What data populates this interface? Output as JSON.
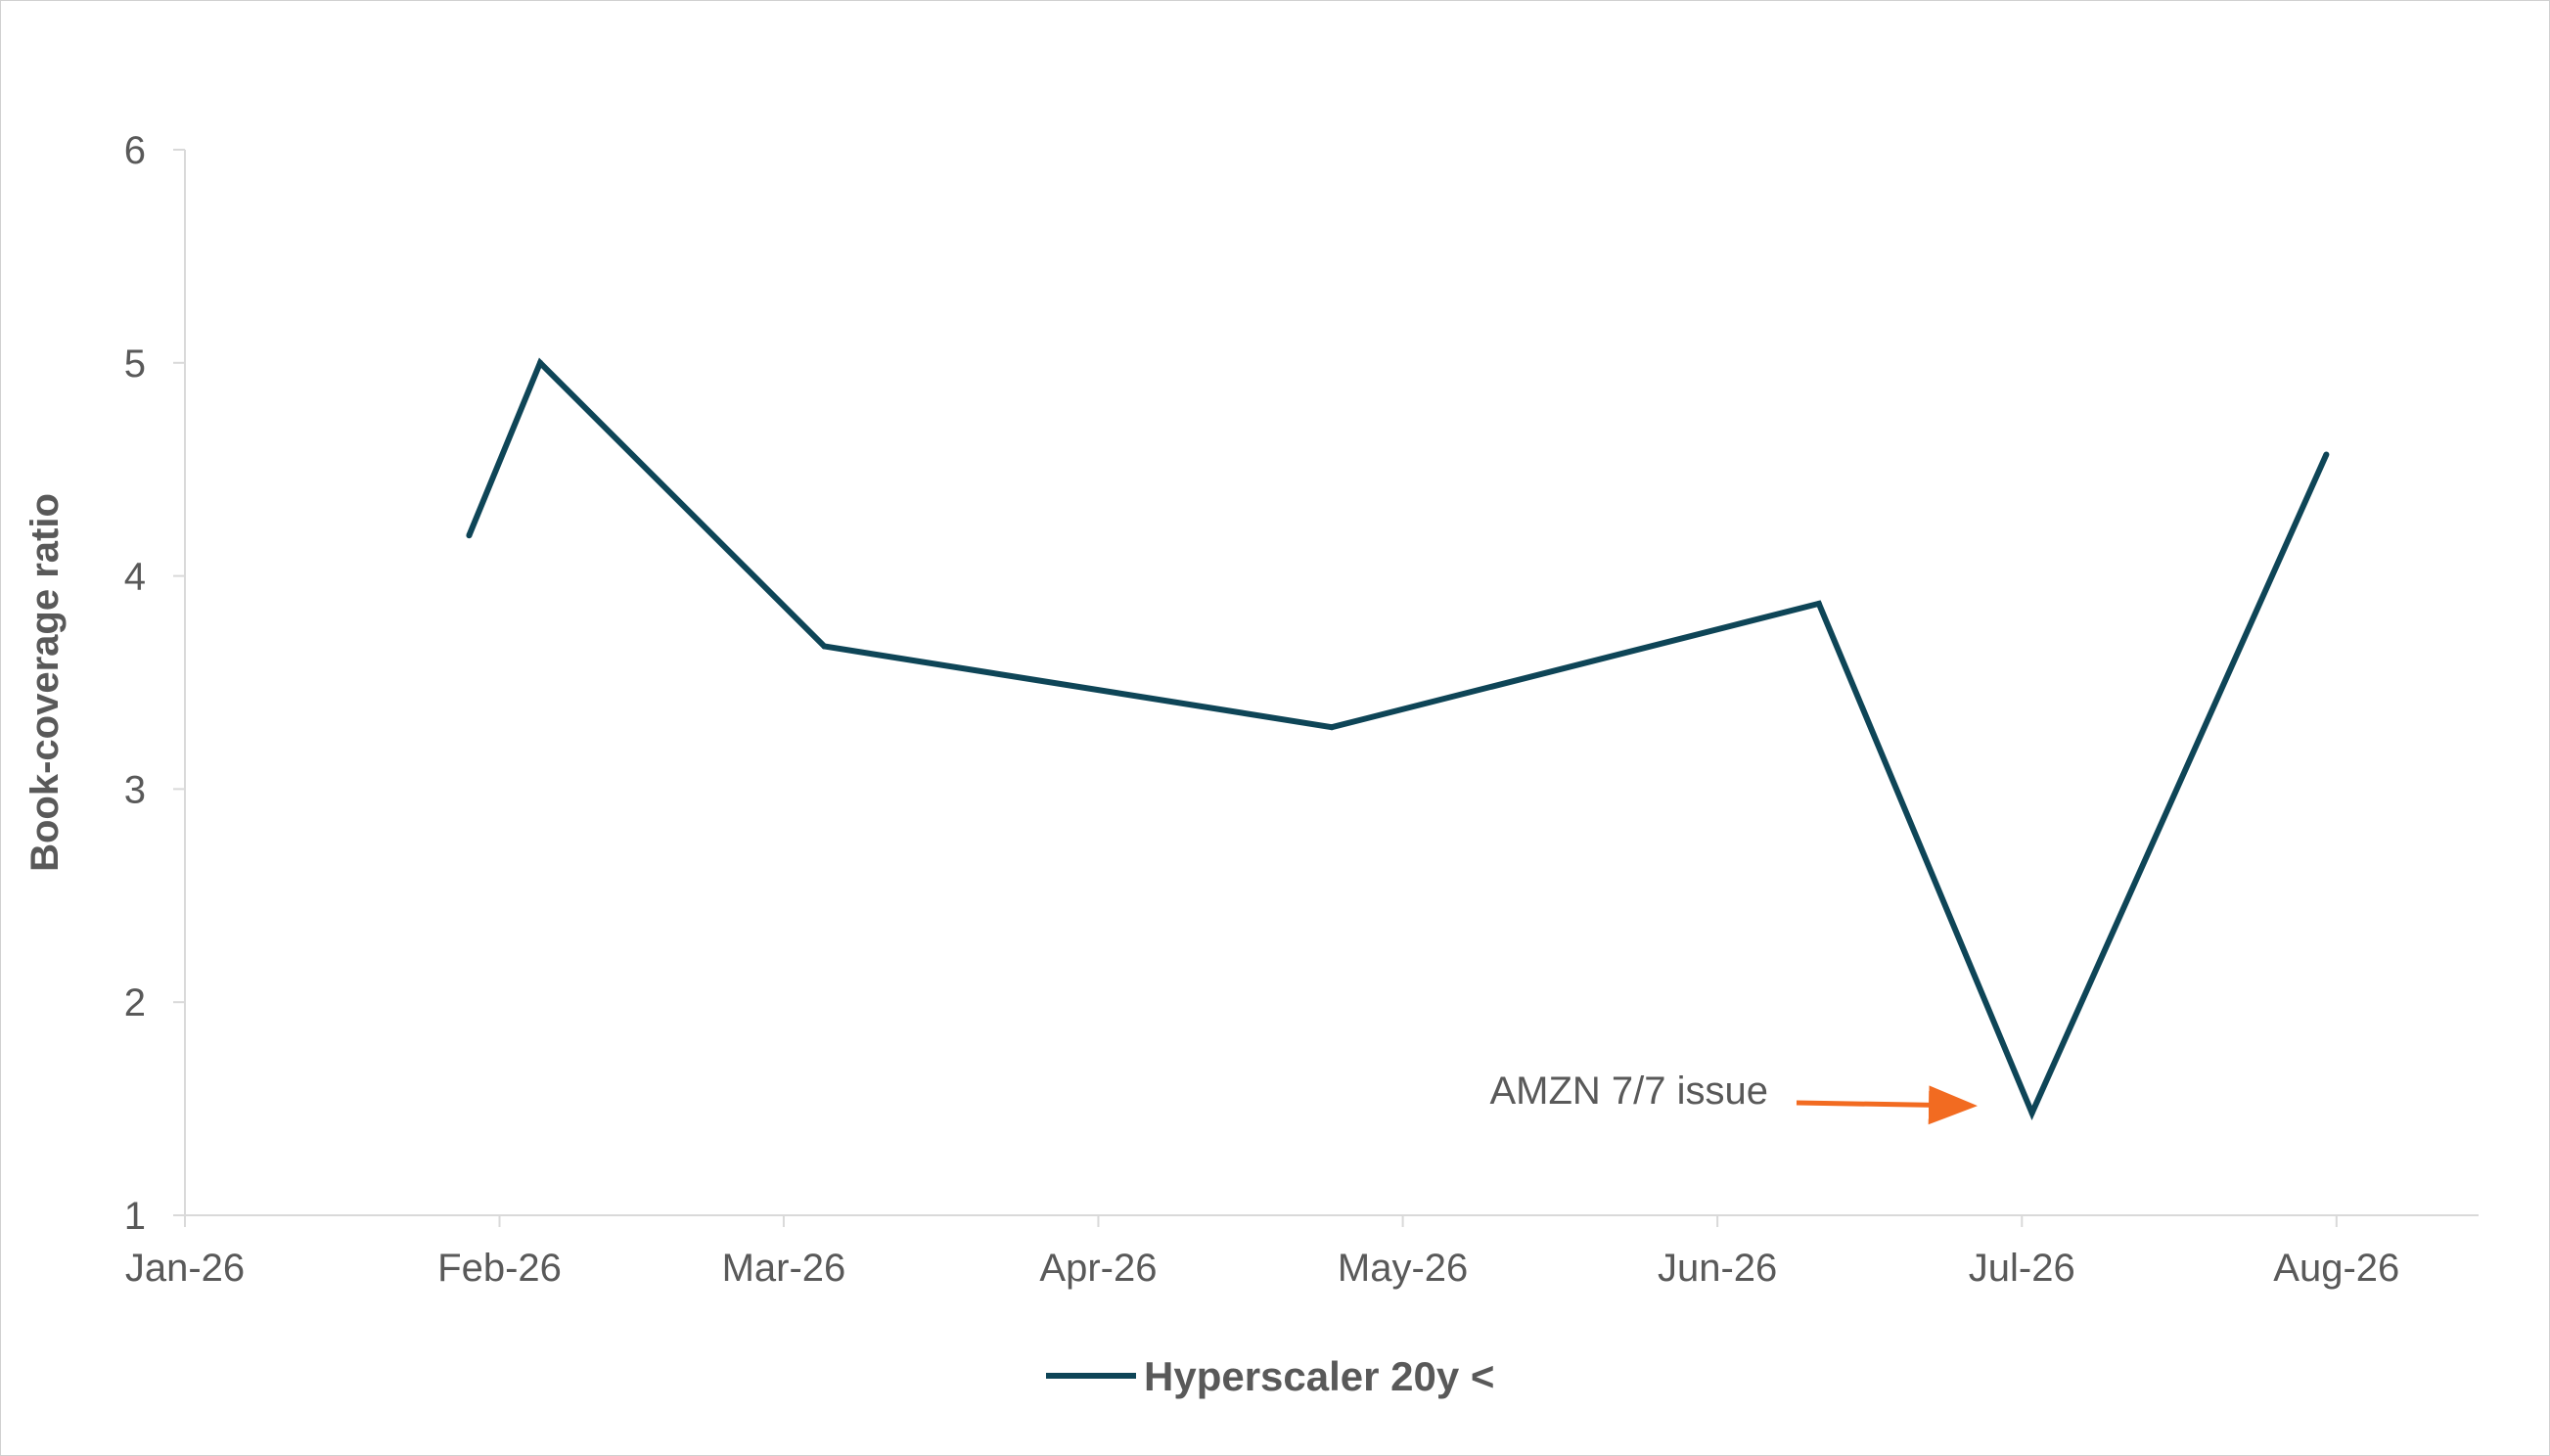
{
  "chart_data": {
    "type": "line",
    "title": "",
    "xlabel": "",
    "ylabel": "Book-coverage ratio",
    "ylim": [
      1,
      6
    ],
    "yticks": [
      "1",
      "2",
      "3",
      "4",
      "5",
      "6"
    ],
    "xlim": [
      "2026-01-01",
      "2026-08-15"
    ],
    "xticks": [
      {
        "date": "2026-01-01",
        "label": "Jan-26"
      },
      {
        "date": "2026-02-01",
        "label": "Feb-26"
      },
      {
        "date": "2026-03-01",
        "label": "Mar-26"
      },
      {
        "date": "2026-04-01",
        "label": "Apr-26"
      },
      {
        "date": "2026-05-01",
        "label": "May-26"
      },
      {
        "date": "2026-06-01",
        "label": "Jun-26"
      },
      {
        "date": "2026-07-01",
        "label": "Jul-26"
      },
      {
        "date": "2026-08-01",
        "label": "Aug-26"
      }
    ],
    "grid": false,
    "legend": "bottom",
    "series": [
      {
        "name": "Hyperscaler 20y <",
        "color": "#0e4557",
        "points": [
          {
            "x": "2026-01-29",
            "y": 4.19
          },
          {
            "x": "2026-02-05",
            "y": 5.0
          },
          {
            "x": "2026-03-05",
            "y": 3.67
          },
          {
            "x": "2026-04-24",
            "y": 3.29
          },
          {
            "x": "2026-06-11",
            "y": 3.87
          },
          {
            "x": "2026-07-02",
            "y": 1.48
          },
          {
            "x": "2026-07-31",
            "y": 4.57
          }
        ]
      }
    ],
    "annotations": [
      {
        "text": "AMZN 7/7 issue",
        "color": "#f26b21"
      }
    ]
  }
}
